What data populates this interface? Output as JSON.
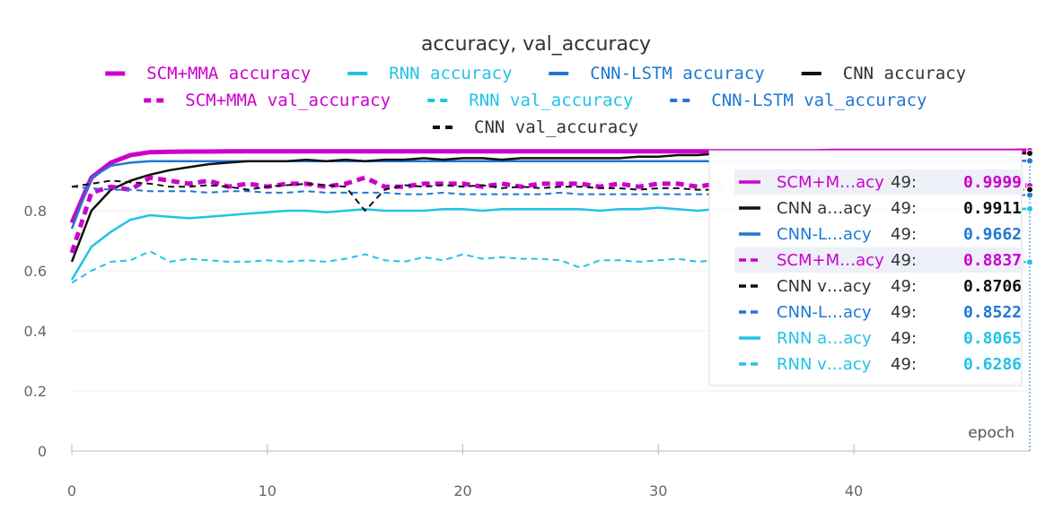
{
  "chart_data": {
    "type": "line",
    "title": "accuracy, val_accuracy",
    "xlabel": "epoch",
    "ylabel": "",
    "xlim": [
      0,
      49
    ],
    "ylim": [
      0,
      1.0
    ],
    "xticks": [
      0,
      10,
      20,
      30,
      40
    ],
    "yticks": [
      0,
      0.2,
      0.4,
      0.6,
      0.8
    ],
    "ytick_labels": [
      "0",
      "0.2",
      "0.4",
      "0.6",
      "0.8"
    ],
    "grid": true,
    "legend_position": "top",
    "series": [
      {
        "name": "SCM+MMA accuracy",
        "color": "#cc00cc",
        "dash": "solid",
        "width": 5,
        "values": [
          0.76,
          0.91,
          0.96,
          0.985,
          0.995,
          0.996,
          0.997,
          0.997,
          0.998,
          0.998,
          0.998,
          0.998,
          0.998,
          0.998,
          0.998,
          0.998,
          0.998,
          0.998,
          0.998,
          0.998,
          0.998,
          0.998,
          0.998,
          0.998,
          0.998,
          0.998,
          0.998,
          0.998,
          0.998,
          0.998,
          0.998,
          0.998,
          0.998,
          0.998,
          0.998,
          0.998,
          0.998,
          0.998,
          0.998,
          0.999,
          0.999,
          0.999,
          0.999,
          0.999,
          0.999,
          0.999,
          0.999,
          0.999,
          0.999,
          0.9999
        ]
      },
      {
        "name": "RNN accuracy",
        "color": "#22c3e6",
        "dash": "solid",
        "width": 2.5,
        "values": [
          0.57,
          0.68,
          0.73,
          0.77,
          0.785,
          0.78,
          0.775,
          0.78,
          0.785,
          0.79,
          0.795,
          0.8,
          0.8,
          0.795,
          0.8,
          0.805,
          0.8,
          0.8,
          0.8,
          0.805,
          0.805,
          0.8,
          0.805,
          0.805,
          0.805,
          0.805,
          0.805,
          0.8,
          0.805,
          0.805,
          0.81,
          0.805,
          0.8,
          0.805,
          0.805,
          0.805,
          0.805,
          0.805,
          0.805,
          0.805,
          0.805,
          0.805,
          0.805,
          0.805,
          0.805,
          0.805,
          0.805,
          0.805,
          0.805,
          0.8065
        ]
      },
      {
        "name": "CNN-LSTM accuracy",
        "color": "#1f77d4",
        "dash": "solid",
        "width": 2.5,
        "values": [
          0.74,
          0.91,
          0.95,
          0.96,
          0.965,
          0.965,
          0.965,
          0.965,
          0.965,
          0.965,
          0.965,
          0.965,
          0.965,
          0.965,
          0.965,
          0.965,
          0.965,
          0.965,
          0.965,
          0.965,
          0.965,
          0.965,
          0.965,
          0.965,
          0.965,
          0.965,
          0.965,
          0.965,
          0.965,
          0.965,
          0.965,
          0.965,
          0.965,
          0.965,
          0.965,
          0.965,
          0.965,
          0.965,
          0.966,
          0.966,
          0.966,
          0.966,
          0.966,
          0.966,
          0.966,
          0.966,
          0.966,
          0.966,
          0.966,
          0.9662
        ]
      },
      {
        "name": "CNN accuracy",
        "color": "#111111",
        "dash": "solid",
        "width": 2.5,
        "values": [
          0.63,
          0.8,
          0.87,
          0.9,
          0.92,
          0.935,
          0.945,
          0.955,
          0.96,
          0.965,
          0.965,
          0.965,
          0.97,
          0.965,
          0.97,
          0.965,
          0.97,
          0.97,
          0.975,
          0.97,
          0.975,
          0.975,
          0.97,
          0.975,
          0.975,
          0.975,
          0.975,
          0.975,
          0.975,
          0.98,
          0.98,
          0.985,
          0.985,
          0.99,
          0.99,
          0.99,
          0.99,
          0.99,
          0.99,
          0.99,
          0.99,
          0.99,
          0.99,
          0.99,
          0.99,
          0.99,
          0.99,
          0.99,
          0.99,
          0.9911
        ]
      },
      {
        "name": "SCM+MMA val_accuracy",
        "color": "#cc00cc",
        "dash": "dashed",
        "width": 5,
        "values": [
          0.66,
          0.86,
          0.88,
          0.87,
          0.91,
          0.9,
          0.89,
          0.9,
          0.88,
          0.89,
          0.88,
          0.89,
          0.89,
          0.88,
          0.89,
          0.91,
          0.88,
          0.88,
          0.89,
          0.89,
          0.89,
          0.88,
          0.89,
          0.88,
          0.89,
          0.89,
          0.89,
          0.88,
          0.89,
          0.88,
          0.89,
          0.89,
          0.88,
          0.89,
          0.885,
          0.885,
          0.885,
          0.885,
          0.885,
          0.885,
          0.885,
          0.885,
          0.885,
          0.885,
          0.885,
          0.885,
          0.885,
          0.885,
          0.885,
          0.8837
        ]
      },
      {
        "name": "RNN val_accuracy",
        "color": "#22c3e6",
        "dash": "dashed",
        "width": 2,
        "values": [
          0.56,
          0.6,
          0.63,
          0.635,
          0.665,
          0.63,
          0.64,
          0.635,
          0.63,
          0.63,
          0.635,
          0.63,
          0.635,
          0.63,
          0.64,
          0.655,
          0.635,
          0.63,
          0.645,
          0.635,
          0.655,
          0.64,
          0.645,
          0.64,
          0.64,
          0.635,
          0.61,
          0.635,
          0.635,
          0.63,
          0.635,
          0.64,
          0.63,
          0.635,
          0.63,
          0.63,
          0.63,
          0.63,
          0.63,
          0.63,
          0.63,
          0.63,
          0.63,
          0.63,
          0.63,
          0.63,
          0.63,
          0.63,
          0.63,
          0.6286
        ]
      },
      {
        "name": "CNN-LSTM val_accuracy",
        "color": "#1f77d4",
        "dash": "dashed",
        "width": 2,
        "values": [
          0.88,
          0.875,
          0.87,
          0.87,
          0.865,
          0.865,
          0.865,
          0.86,
          0.865,
          0.865,
          0.86,
          0.86,
          0.865,
          0.86,
          0.86,
          0.86,
          0.86,
          0.855,
          0.855,
          0.86,
          0.855,
          0.855,
          0.855,
          0.855,
          0.855,
          0.86,
          0.855,
          0.855,
          0.855,
          0.855,
          0.855,
          0.855,
          0.855,
          0.855,
          0.852,
          0.852,
          0.852,
          0.852,
          0.852,
          0.852,
          0.852,
          0.852,
          0.852,
          0.852,
          0.852,
          0.852,
          0.852,
          0.852,
          0.852,
          0.8522
        ]
      },
      {
        "name": "CNN val_accuracy",
        "color": "#111111",
        "dash": "dashed",
        "width": 2,
        "values": [
          0.88,
          0.89,
          0.9,
          0.895,
          0.89,
          0.88,
          0.88,
          0.885,
          0.88,
          0.87,
          0.88,
          0.885,
          0.89,
          0.885,
          0.88,
          0.8,
          0.87,
          0.885,
          0.88,
          0.885,
          0.88,
          0.885,
          0.875,
          0.88,
          0.875,
          0.88,
          0.88,
          0.875,
          0.875,
          0.87,
          0.875,
          0.875,
          0.87,
          0.87,
          0.87,
          0.87,
          0.87,
          0.87,
          0.87,
          0.87,
          0.87,
          0.87,
          0.87,
          0.87,
          0.87,
          0.87,
          0.87,
          0.87,
          0.87,
          0.8706
        ]
      }
    ],
    "tooltip": {
      "items": [
        {
          "label": "SCM+M…acy",
          "step": "49:",
          "value": "0.9999",
          "color": "#cc00cc",
          "dash": "solid",
          "highlight": true
        },
        {
          "label": "CNN a…acy",
          "step": "49:",
          "value": "0.9911",
          "color": "#111111",
          "dash": "solid",
          "highlight": false
        },
        {
          "label": "CNN-L…acy",
          "step": "49:",
          "value": "0.9662",
          "color": "#1f77d4",
          "dash": "solid",
          "highlight": false
        },
        {
          "label": "SCM+M…acy",
          "step": "49:",
          "value": "0.8837",
          "color": "#cc00cc",
          "dash": "dashed",
          "highlight": true
        },
        {
          "label": "CNN v…acy",
          "step": "49:",
          "value": "0.8706",
          "color": "#111111",
          "dash": "dashed",
          "highlight": false
        },
        {
          "label": "CNN-L…acy",
          "step": "49:",
          "value": "0.8522",
          "color": "#1f77d4",
          "dash": "dashed",
          "highlight": false
        },
        {
          "label": "RNN a…acy",
          "step": "49:",
          "value": "0.8065",
          "color": "#22c3e6",
          "dash": "solid",
          "highlight": false
        },
        {
          "label": "RNN v…acy",
          "step": "49:",
          "value": "0.6286",
          "color": "#22c3e6",
          "dash": "dashed",
          "highlight": false
        }
      ]
    }
  }
}
